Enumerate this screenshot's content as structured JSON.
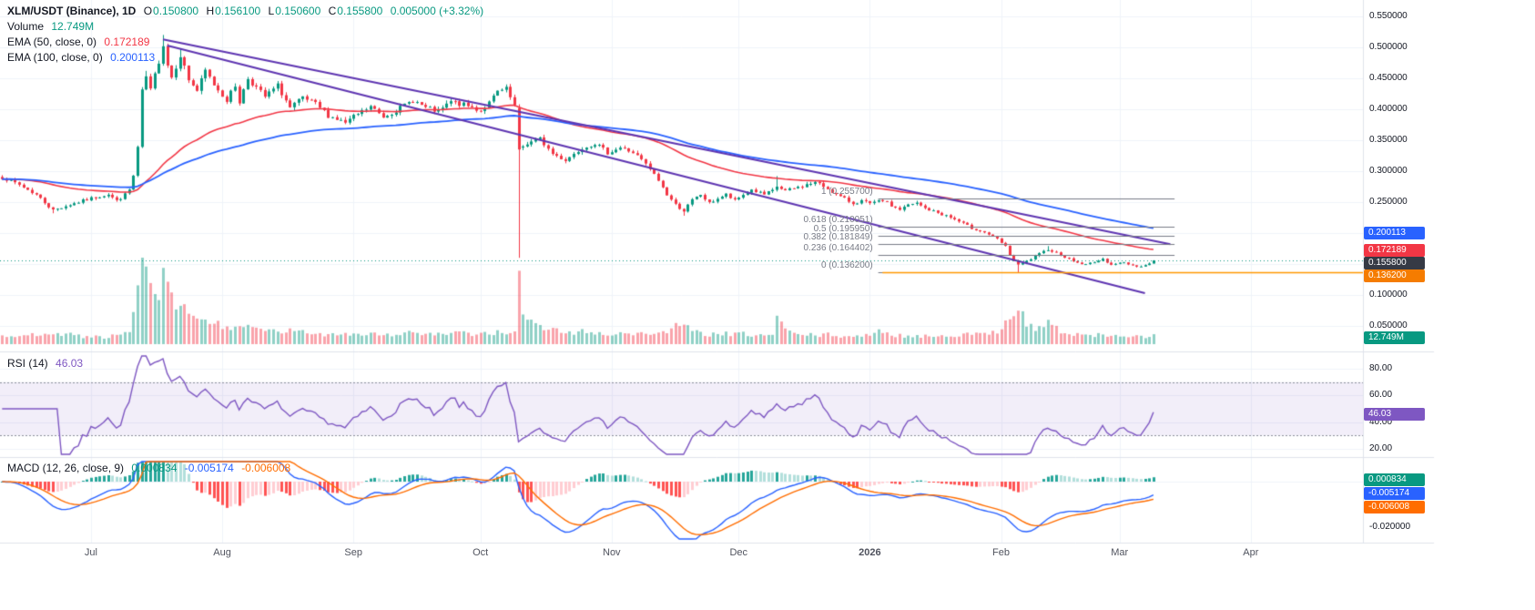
{
  "colors": {
    "up": "#089981",
    "down": "#f23645",
    "vol_up": "rgba(8,153,129,0.45)",
    "vol_down": "rgba(242,54,69,0.45)",
    "ema50": "#f23645",
    "ema100": "#2962ff",
    "trend": "#5e35b1",
    "fib": "#787b86",
    "ray": "#ff9800",
    "rsi": "#7e57c2",
    "rsi_band": "rgba(126,87,194,0.10)",
    "rsi_dash": "#8a8e9b",
    "macd": "#2962ff",
    "signal": "#ff6d00",
    "hist_up": "#26a69a",
    "hist_up_weak": "#b2dfdb",
    "hist_down": "#ff5252",
    "hist_down_weak": "#ffcdd2",
    "grid": "#f0f3fa",
    "separator": "#e0e3eb",
    "current_badge": "#363a45"
  },
  "header": {
    "symbol": "XLM/USDT (Binance), 1D",
    "ohlc": {
      "o_label": "O",
      "o": "0.150800",
      "h_label": "H",
      "h": "0.156100",
      "l_label": "L",
      "l": "0.150600",
      "c_label": "C",
      "c": "0.155800",
      "change": "0.005000 (+3.32%)"
    },
    "volume_label": "Volume",
    "volume_value": "12.749M",
    "ema50_label": "EMA (50, close, 0)",
    "ema50_value": "0.172189",
    "ema100_label": "EMA (100, close, 0)",
    "ema100_value": "0.200113"
  },
  "rsi_pane": {
    "label": "RSI (14)",
    "value": "46.03",
    "badge": {
      "text": "46.03",
      "value": 46.03,
      "color": "#7e57c2"
    },
    "ticks": [
      {
        "text": "80.00",
        "value": 80
      },
      {
        "text": "60.00",
        "value": 60
      },
      {
        "text": "40.00",
        "value": 40
      },
      {
        "text": "20.00",
        "value": 20
      }
    ],
    "bands": [
      70,
      30
    ]
  },
  "macd_pane": {
    "label": "MACD (12, 26, close, 9)",
    "hist_value": "0.000834",
    "macd_value": "-0.005174",
    "signal_value": "-0.006008",
    "ticks": [
      {
        "text": "-0.020000",
        "value": -0.02
      }
    ],
    "badges": [
      {
        "text": "0.000834",
        "value": 0.000834,
        "color": "#089981"
      },
      {
        "text": "-0.005174",
        "value": -0.005174,
        "color": "#2962ff"
      },
      {
        "text": "-0.006008",
        "value": -0.006008,
        "color": "#ff6d00"
      }
    ]
  },
  "price_axis": {
    "ticks": [
      {
        "text": "0.550000",
        "value": 0.55
      },
      {
        "text": "0.500000",
        "value": 0.5
      },
      {
        "text": "0.450000",
        "value": 0.45
      },
      {
        "text": "0.400000",
        "value": 0.4
      },
      {
        "text": "0.350000",
        "value": 0.35
      },
      {
        "text": "0.300000",
        "value": 0.3
      },
      {
        "text": "0.250000",
        "value": 0.25
      },
      {
        "text": "0.100000",
        "value": 0.1
      },
      {
        "text": "0.050000",
        "value": 0.05
      }
    ],
    "grid_values": [
      0.55,
      0.5,
      0.45,
      0.4,
      0.35,
      0.3,
      0.25,
      0.2,
      0.15,
      0.1,
      0.05
    ],
    "badges": [
      {
        "text": "0.200113",
        "value": 0.200113,
        "color": "#2962ff"
      },
      {
        "text": "0.172189",
        "value": 0.172189,
        "color": "#f23645"
      },
      {
        "text": "0.155800",
        "value": 0.1558,
        "color": "#363a45"
      },
      {
        "text": "0.136200",
        "value": 0.1362,
        "color": "#f57c00"
      }
    ],
    "volume_badge": {
      "text": "12.749M",
      "color": "#089981"
    }
  },
  "time_axis": {
    "labels": [
      {
        "text": "Jul",
        "i": 21
      },
      {
        "text": "Aug",
        "i": 52
      },
      {
        "text": "Sep",
        "i": 83
      },
      {
        "text": "Oct",
        "i": 113
      },
      {
        "text": "Nov",
        "i": 144
      },
      {
        "text": "Dec",
        "i": 174
      },
      {
        "text": "2026",
        "i": 205,
        "bold": true
      },
      {
        "text": "Feb",
        "i": 236
      },
      {
        "text": "Mar",
        "i": 264
      },
      {
        "text": "Apr",
        "i": 295
      }
    ]
  },
  "chart_data": {
    "type": "candlestick",
    "symbol": "XLM/USDT",
    "exchange": "Binance",
    "interval": "1D",
    "panes": [
      "price+volume",
      "rsi",
      "macd"
    ],
    "last_candle": {
      "open": 0.1508,
      "high": 0.1561,
      "low": 0.1506,
      "close": 0.1558,
      "change": 0.005,
      "change_pct": 3.32
    },
    "last_volume_m": 12.749,
    "days_total": 273,
    "axis_days": 322,
    "price_axis_range": [
      0.05,
      0.55
    ],
    "close_anchors": [
      [
        0,
        0.29
      ],
      [
        4,
        0.278
      ],
      [
        8,
        0.262
      ],
      [
        12,
        0.237
      ],
      [
        16,
        0.246
      ],
      [
        21,
        0.256
      ],
      [
        25,
        0.263
      ],
      [
        27,
        0.252
      ],
      [
        29,
        0.262
      ],
      [
        30,
        0.27
      ],
      [
        31,
        0.292
      ],
      [
        32,
        0.338
      ],
      [
        33,
        0.428
      ],
      [
        34,
        0.452
      ],
      [
        35,
        0.43
      ],
      [
        36,
        0.455
      ],
      [
        37,
        0.478
      ],
      [
        38,
        0.505
      ],
      [
        39,
        0.472
      ],
      [
        40,
        0.452
      ],
      [
        42,
        0.488
      ],
      [
        44,
        0.448
      ],
      [
        46,
        0.43
      ],
      [
        48,
        0.462
      ],
      [
        50,
        0.44
      ],
      [
        53,
        0.415
      ],
      [
        55,
        0.438
      ],
      [
        56,
        0.412
      ],
      [
        58,
        0.45
      ],
      [
        60,
        0.435
      ],
      [
        62,
        0.42
      ],
      [
        65,
        0.438
      ],
      [
        68,
        0.402
      ],
      [
        71,
        0.418
      ],
      [
        74,
        0.408
      ],
      [
        77,
        0.39
      ],
      [
        81,
        0.378
      ],
      [
        84,
        0.392
      ],
      [
        87,
        0.404
      ],
      [
        90,
        0.388
      ],
      [
        94,
        0.402
      ],
      [
        97,
        0.415
      ],
      [
        100,
        0.402
      ],
      [
        103,
        0.396
      ],
      [
        106,
        0.412
      ],
      [
        110,
        0.405
      ],
      [
        113,
        0.398
      ],
      [
        115,
        0.41
      ],
      [
        117,
        0.428
      ],
      [
        119,
        0.432
      ],
      [
        121,
        0.405
      ],
      [
        122,
        0.335
      ],
      [
        124,
        0.345
      ],
      [
        127,
        0.352
      ],
      [
        130,
        0.328
      ],
      [
        133,
        0.318
      ],
      [
        137,
        0.338
      ],
      [
        140,
        0.345
      ],
      [
        143,
        0.33
      ],
      [
        146,
        0.338
      ],
      [
        149,
        0.33
      ],
      [
        151,
        0.318
      ],
      [
        153,
        0.303
      ],
      [
        155,
        0.285
      ],
      [
        157,
        0.262
      ],
      [
        159,
        0.246
      ],
      [
        161,
        0.236
      ],
      [
        163,
        0.253
      ],
      [
        165,
        0.262
      ],
      [
        167,
        0.248
      ],
      [
        169,
        0.256
      ],
      [
        171,
        0.262
      ],
      [
        173,
        0.252
      ],
      [
        175,
        0.262
      ],
      [
        177,
        0.27
      ],
      [
        180,
        0.262
      ],
      [
        182,
        0.268
      ],
      [
        183,
        0.275
      ],
      [
        185,
        0.268
      ],
      [
        187,
        0.272
      ],
      [
        190,
        0.278
      ],
      [
        192,
        0.282
      ],
      [
        195,
        0.272
      ],
      [
        197,
        0.262
      ],
      [
        199,
        0.255
      ],
      [
        201,
        0.248
      ],
      [
        203,
        0.252
      ],
      [
        205,
        0.247
      ],
      [
        208,
        0.253
      ],
      [
        210,
        0.244
      ],
      [
        212,
        0.238
      ],
      [
        214,
        0.245
      ],
      [
        216,
        0.248
      ],
      [
        218,
        0.24
      ],
      [
        220,
        0.235
      ],
      [
        223,
        0.228
      ],
      [
        225,
        0.222
      ],
      [
        227,
        0.215
      ],
      [
        229,
        0.208
      ],
      [
        231,
        0.204
      ],
      [
        233,
        0.198
      ],
      [
        235,
        0.19
      ],
      [
        237,
        0.178
      ],
      [
        238,
        0.165
      ],
      [
        239,
        0.155
      ],
      [
        240,
        0.148
      ],
      [
        242,
        0.154
      ],
      [
        244,
        0.162
      ],
      [
        246,
        0.17
      ],
      [
        247,
        0.174
      ],
      [
        250,
        0.165
      ],
      [
        252,
        0.158
      ],
      [
        254,
        0.152
      ],
      [
        256,
        0.149
      ],
      [
        258,
        0.154
      ],
      [
        260,
        0.157
      ],
      [
        262,
        0.15
      ],
      [
        265,
        0.152
      ],
      [
        267,
        0.148
      ],
      [
        269,
        0.146
      ],
      [
        271,
        0.151
      ],
      [
        272,
        0.156
      ]
    ],
    "volume_anchors": [
      [
        0,
        9
      ],
      [
        6,
        11
      ],
      [
        12,
        16
      ],
      [
        18,
        10
      ],
      [
        24,
        9
      ],
      [
        28,
        11
      ],
      [
        30,
        16
      ],
      [
        31,
        34
      ],
      [
        32,
        70
      ],
      [
        33,
        115
      ],
      [
        34,
        95
      ],
      [
        35,
        70
      ],
      [
        36,
        60
      ],
      [
        38,
        80
      ],
      [
        40,
        55
      ],
      [
        42,
        45
      ],
      [
        44,
        40
      ],
      [
        46,
        34
      ],
      [
        48,
        30
      ],
      [
        50,
        26
      ],
      [
        53,
        22
      ],
      [
        55,
        24
      ],
      [
        58,
        20
      ],
      [
        61,
        18
      ],
      [
        64,
        16
      ],
      [
        68,
        17
      ],
      [
        72,
        14
      ],
      [
        77,
        13
      ],
      [
        81,
        14
      ],
      [
        84,
        13
      ],
      [
        87,
        14
      ],
      [
        90,
        12
      ],
      [
        94,
        13
      ],
      [
        97,
        15
      ],
      [
        100,
        13
      ],
      [
        103,
        12
      ],
      [
        106,
        14
      ],
      [
        110,
        13
      ],
      [
        113,
        13
      ],
      [
        116,
        15
      ],
      [
        118,
        16
      ],
      [
        120,
        14
      ],
      [
        121,
        20
      ],
      [
        122,
        80
      ],
      [
        123,
        42
      ],
      [
        124,
        30
      ],
      [
        127,
        22
      ],
      [
        130,
        18
      ],
      [
        133,
        15
      ],
      [
        137,
        16
      ],
      [
        140,
        14
      ],
      [
        143,
        13
      ],
      [
        146,
        14
      ],
      [
        150,
        13
      ],
      [
        153,
        14
      ],
      [
        156,
        15
      ],
      [
        159,
        22
      ],
      [
        161,
        24
      ],
      [
        163,
        16
      ],
      [
        166,
        13
      ],
      [
        169,
        12
      ],
      [
        171,
        13
      ],
      [
        173,
        12
      ],
      [
        175,
        13
      ],
      [
        177,
        12
      ],
      [
        180,
        11
      ],
      [
        182,
        12
      ],
      [
        183,
        36
      ],
      [
        185,
        18
      ],
      [
        187,
        13
      ],
      [
        190,
        12
      ],
      [
        192,
        11
      ],
      [
        195,
        12
      ],
      [
        197,
        11
      ],
      [
        199,
        10
      ],
      [
        201,
        11
      ],
      [
        203,
        10
      ],
      [
        205,
        11
      ],
      [
        208,
        18
      ],
      [
        210,
        12
      ],
      [
        212,
        11
      ],
      [
        214,
        10
      ],
      [
        216,
        11
      ],
      [
        218,
        10
      ],
      [
        220,
        11
      ],
      [
        223,
        11
      ],
      [
        225,
        12
      ],
      [
        227,
        12
      ],
      [
        229,
        13
      ],
      [
        231,
        12
      ],
      [
        233,
        14
      ],
      [
        235,
        18
      ],
      [
        237,
        30
      ],
      [
        238,
        36
      ],
      [
        239,
        42
      ],
      [
        240,
        48
      ],
      [
        242,
        26
      ],
      [
        244,
        20
      ],
      [
        246,
        24
      ],
      [
        247,
        28
      ],
      [
        250,
        16
      ],
      [
        252,
        13
      ],
      [
        254,
        12
      ],
      [
        256,
        11
      ],
      [
        258,
        12
      ],
      [
        260,
        11
      ],
      [
        262,
        10
      ],
      [
        265,
        11
      ],
      [
        267,
        10
      ],
      [
        269,
        9
      ],
      [
        271,
        9
      ],
      [
        272,
        12.749
      ]
    ],
    "candle_overrides": [
      {
        "i": 12,
        "l": 0.232
      },
      {
        "i": 34,
        "h": 0.462
      },
      {
        "i": 38,
        "h": 0.52
      },
      {
        "i": 42,
        "h": 0.498
      },
      {
        "i": 122,
        "o": 0.402,
        "h": 0.408,
        "l": 0.16,
        "c": 0.335
      },
      {
        "i": 161,
        "l": 0.228
      },
      {
        "i": 183,
        "h": 0.292
      },
      {
        "i": 208,
        "h": 0.2557
      },
      {
        "i": 240,
        "l": 0.1362
      },
      {
        "i": 247,
        "h": 0.179
      },
      {
        "i": 271,
        "c": 0.1508
      },
      {
        "i": 272,
        "o": 0.1508,
        "h": 0.1561,
        "l": 0.1506,
        "c": 0.1558
      }
    ],
    "indicators": {
      "ema50": {
        "period": 50,
        "last": 0.172189
      },
      "ema100": {
        "period": 100,
        "last": 0.200113
      },
      "rsi": {
        "period": 14,
        "last": 46.03,
        "bands": [
          70,
          30
        ]
      },
      "macd": {
        "fast": 12,
        "slow": 26,
        "signal": 9,
        "macd_last": -0.005174,
        "signal_last": -0.006008,
        "hist_last": 0.000834
      }
    },
    "annotations": {
      "trendlines": [
        {
          "i1": 38,
          "p1": 0.513,
          "i2": 276,
          "p2": 0.182
        },
        {
          "i1": 39,
          "p1": 0.503,
          "i2": 270,
          "p2": 0.103
        }
      ],
      "fib": {
        "i1": 207,
        "i2": 277,
        "levels": [
          {
            "label": "1 (0.255700)",
            "value": 0.2557
          },
          {
            "label": "0.618 (0.210051)",
            "value": 0.210051
          },
          {
            "label": "0.5 (0.195950)",
            "value": 0.19595
          },
          {
            "label": "0.382 (0.181849)",
            "value": 0.181849
          },
          {
            "label": "0.236 (0.164402)",
            "value": 0.164402
          },
          {
            "label": "0 (0.136200)",
            "value": 0.1362
          }
        ]
      },
      "ray": {
        "i1": 208,
        "value": 0.1362
      },
      "current_price": 0.1558
    }
  }
}
